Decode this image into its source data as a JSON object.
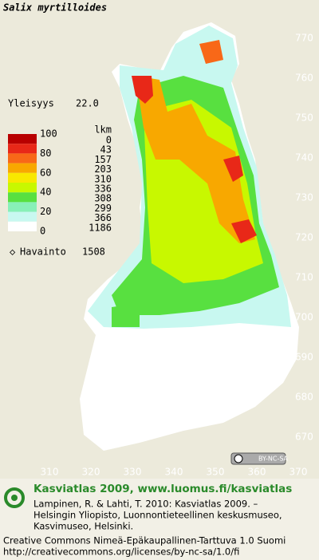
{
  "title": "Salix myrtilloides",
  "frequency": {
    "label": "Yleisyys",
    "value": "22.0"
  },
  "legend": {
    "levels": [
      "100",
      "80",
      "60",
      "40",
      "20",
      "0"
    ],
    "colors": [
      "#b80000",
      "#e82818",
      "#f86818",
      "#f8a800",
      "#f8e800",
      "#c8f800",
      "#58e040",
      "#88f0b8",
      "#c8f8f0",
      "#ffffff"
    ],
    "count_header": "lkm",
    "counts": [
      "0",
      "43",
      "157",
      "203",
      "310",
      "336",
      "308",
      "299",
      "366",
      "1186"
    ]
  },
  "observations": {
    "label": "Havainto",
    "count": "1508"
  },
  "y_labels": [
    "770",
    "760",
    "750",
    "740",
    "730",
    "720",
    "710",
    "700",
    "690",
    "680",
    "670"
  ],
  "x_labels": [
    "310",
    "320",
    "330",
    "340",
    "350",
    "360",
    "370"
  ],
  "badge": "BY-NC-SA",
  "footer": {
    "site": "Kasviatlas 2009, www.luomus.fi/kasviatlas",
    "citation": [
      "Lampinen, R. & Lahti, T. 2010: Kasviatlas 2009. –",
      "Helsingin Yliopisto, Luonnontieteellinen keskusmuseo,",
      "Kasvimuseo, Helsinki."
    ],
    "license": [
      "Creative Commons Nimeä-Epäkaupallinen-Tarttuva 1.0 Suomi",
      "http://creativecommons.org/licenses/by-nc-sa/1.0/fi"
    ]
  }
}
